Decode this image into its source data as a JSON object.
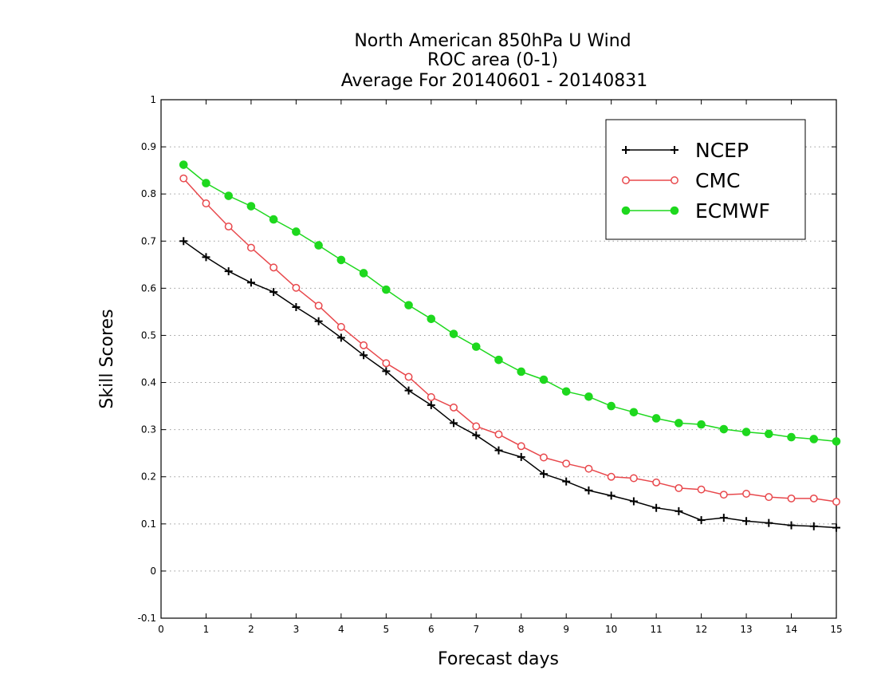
{
  "chart_data": {
    "type": "line",
    "title_lines": [
      "North American 850hPa U Wind",
      "ROC area (0-1)",
      "Average For 20140601 - 20140831"
    ],
    "xlabel": "Forecast days",
    "ylabel": "Skill Scores",
    "xlim": [
      0,
      15
    ],
    "ylim": [
      -0.1,
      1
    ],
    "xticks": [
      "0",
      "1",
      "2",
      "3",
      "4",
      "5",
      "6",
      "7",
      "8",
      "9",
      "10",
      "11",
      "12",
      "13",
      "14",
      "15"
    ],
    "yticks": [
      "-0.1",
      "0",
      "0.1",
      "0.2",
      "0.3",
      "0.4",
      "0.5",
      "0.6",
      "0.7",
      "0.8",
      "0.9",
      "1"
    ],
    "grid": "horizontal-dotted",
    "legend_position": "top-right",
    "x": [
      0.5,
      1,
      1.5,
      2,
      2.5,
      3,
      3.5,
      4,
      4.5,
      5,
      5.5,
      6,
      6.5,
      7,
      7.5,
      8,
      8.5,
      9,
      9.5,
      10,
      10.5,
      11,
      11.5,
      12,
      12.5,
      13,
      13.5,
      14,
      14.5,
      15
    ],
    "series": [
      {
        "name": "NCEP",
        "color": "#000000",
        "marker": "plus",
        "values": [
          0.7,
          0.666,
          0.636,
          0.612,
          0.592,
          0.56,
          0.53,
          0.495,
          0.458,
          0.424,
          0.383,
          0.352,
          0.314,
          0.288,
          0.256,
          0.242,
          0.206,
          0.19,
          0.171,
          0.16,
          0.148,
          0.134,
          0.127,
          0.108,
          0.113,
          0.106,
          0.102,
          0.097,
          0.095,
          0.092
        ]
      },
      {
        "name": "CMC",
        "color": "#e8484c",
        "marker": "open-circle",
        "values": [
          0.833,
          0.78,
          0.731,
          0.686,
          0.644,
          0.601,
          0.563,
          0.518,
          0.479,
          0.441,
          0.412,
          0.369,
          0.347,
          0.307,
          0.29,
          0.265,
          0.241,
          0.228,
          0.217,
          0.2,
          0.197,
          0.188,
          0.176,
          0.173,
          0.162,
          0.164,
          0.157,
          0.154,
          0.154,
          0.147
        ]
      },
      {
        "name": "ECMWF",
        "color": "#1ed81e",
        "marker": "filled-circle",
        "values": [
          0.862,
          0.823,
          0.796,
          0.774,
          0.746,
          0.72,
          0.691,
          0.66,
          0.632,
          0.597,
          0.564,
          0.535,
          0.503,
          0.476,
          0.448,
          0.423,
          0.406,
          0.381,
          0.37,
          0.35,
          0.337,
          0.324,
          0.314,
          0.311,
          0.301,
          0.295,
          0.291,
          0.284,
          0.28,
          0.275
        ]
      }
    ]
  }
}
